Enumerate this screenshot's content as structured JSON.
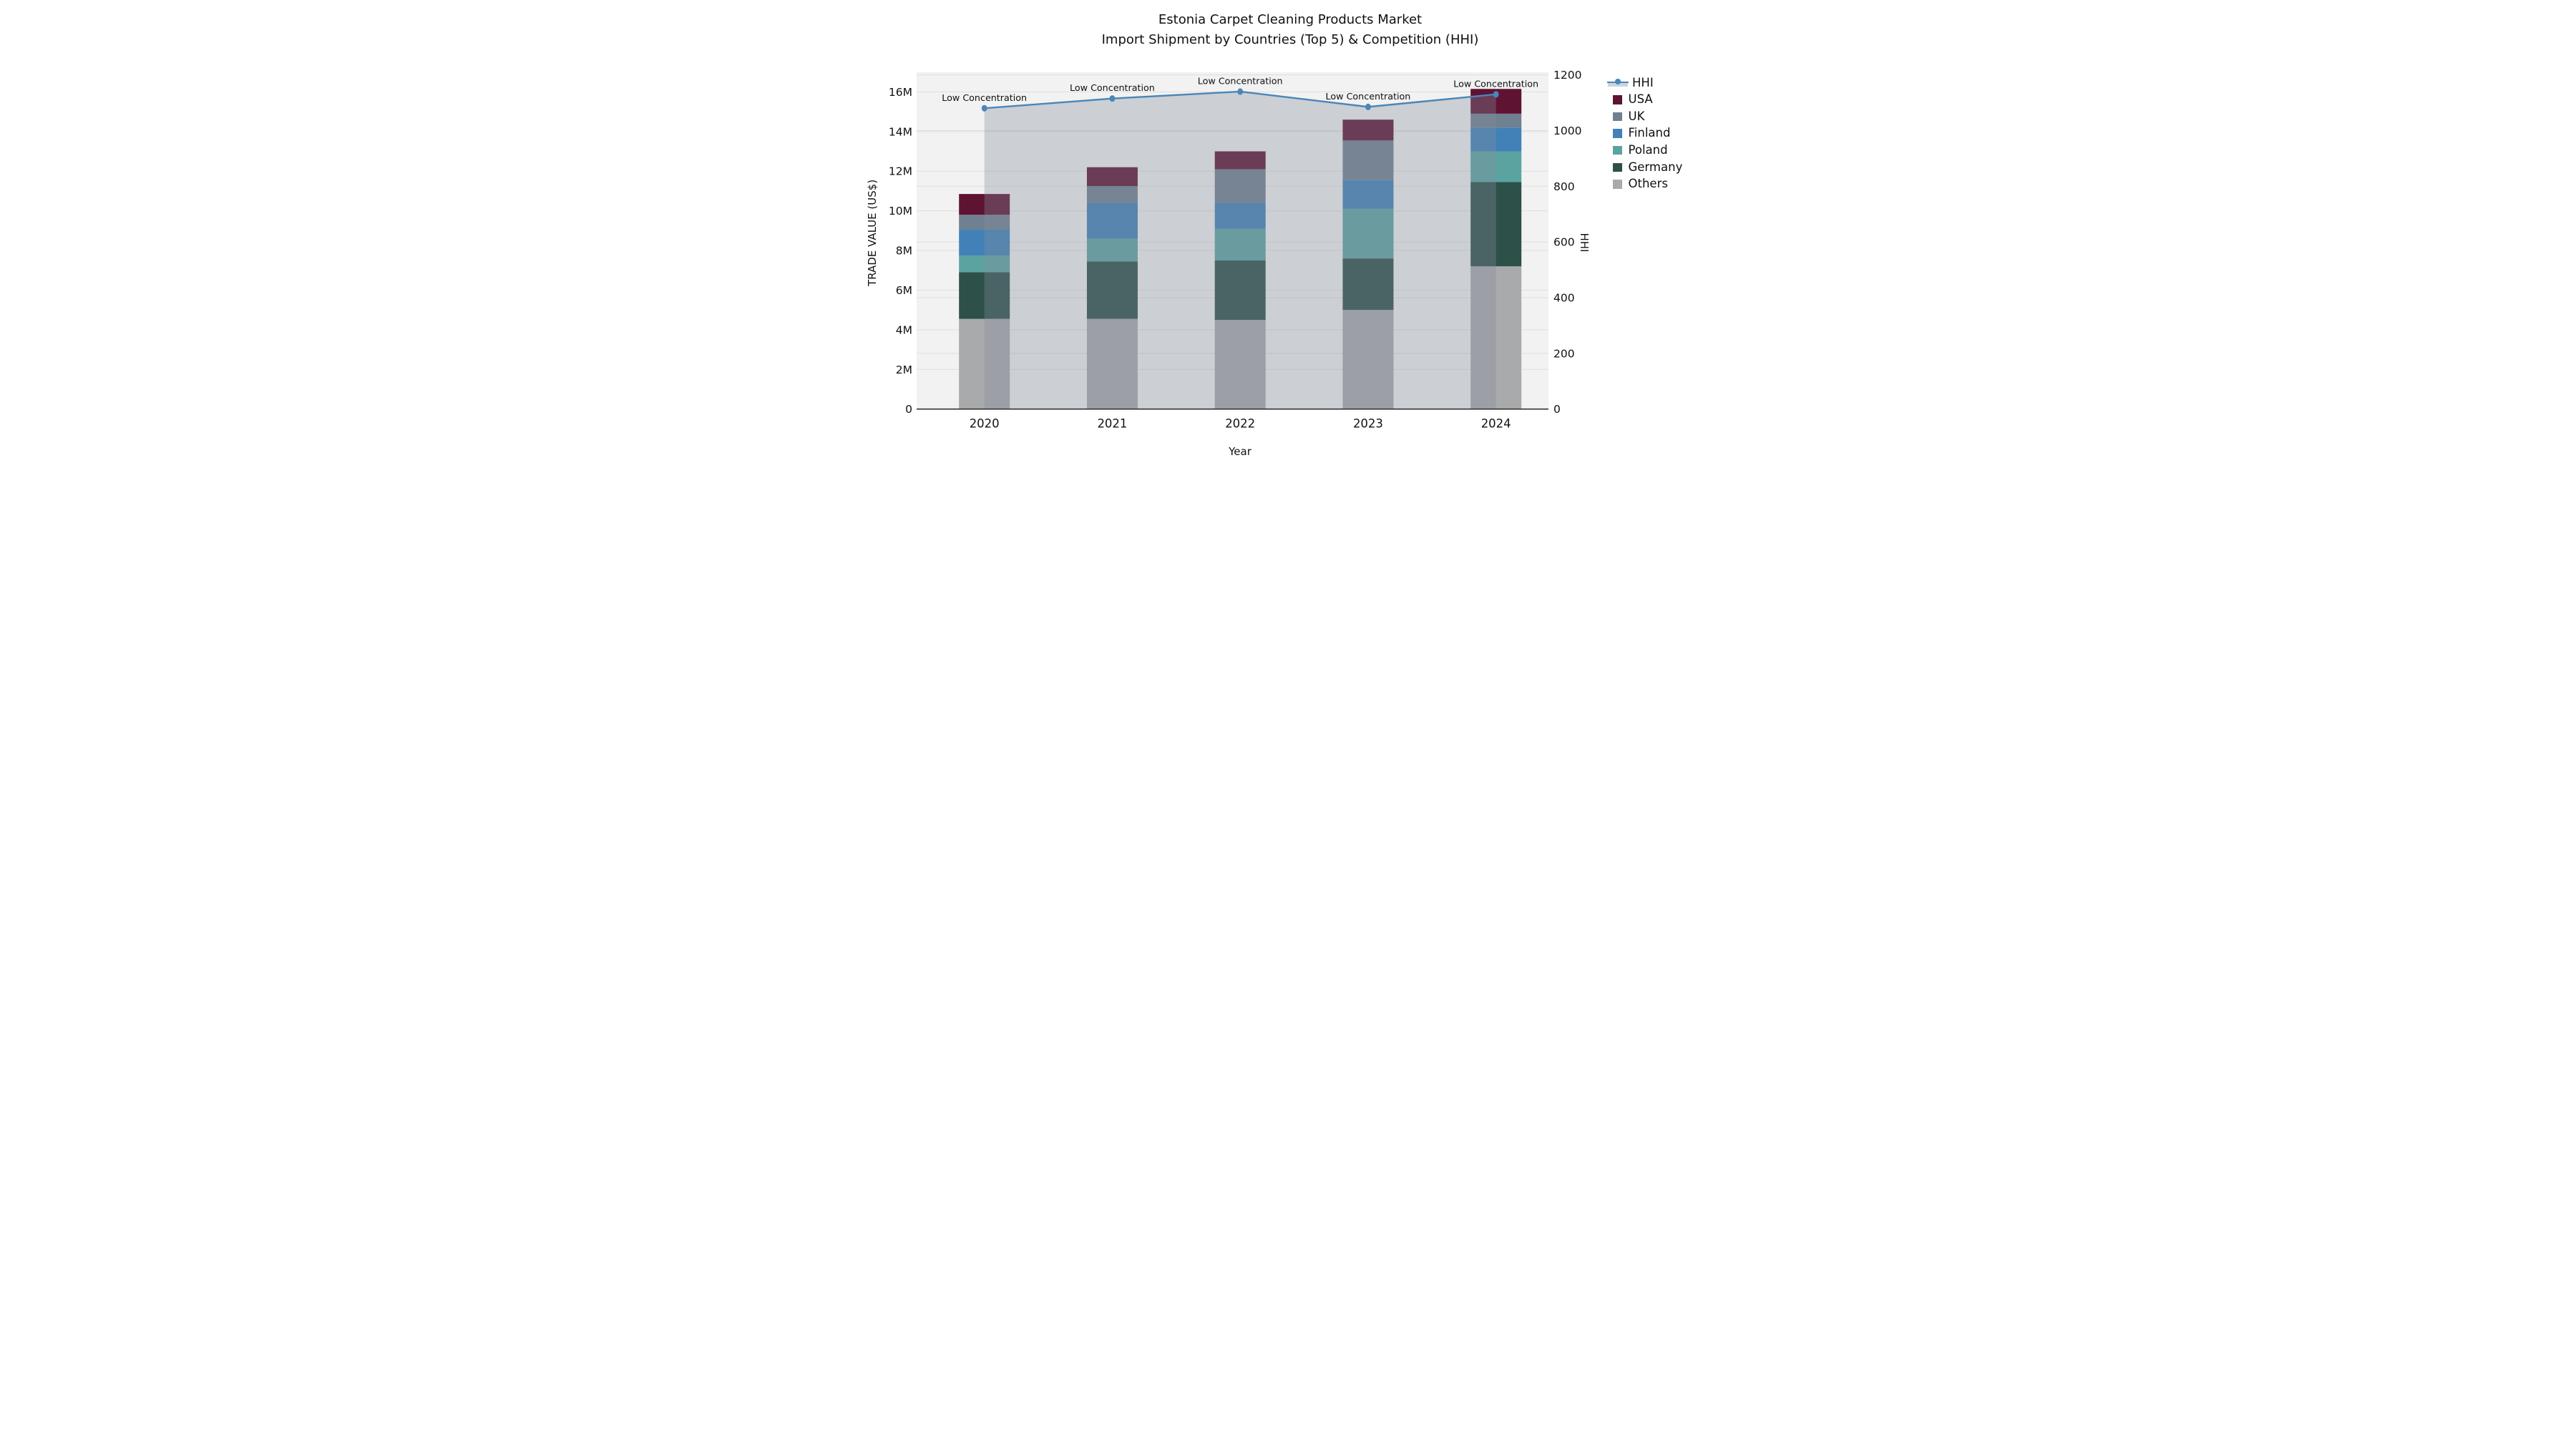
{
  "figure": {
    "title_line1": "Estonia Carpet Cleaning Products Market",
    "title_line2": "Import Shipment by Countries (Top 5) & Competition (HHI)"
  },
  "chart_data": {
    "type": "bar",
    "subtype": "stacked-bar-with-line-overlay",
    "title": "Estonia Carpet Cleaning Products Market — Import Shipment by Countries (Top 5) & Competition (HHI)",
    "categories": [
      "2020",
      "2021",
      "2022",
      "2023",
      "2024"
    ],
    "xlabel": "Year",
    "left_axis": {
      "label": "TRADE VALUE (US$)",
      "tick_labels": [
        "0",
        "2M",
        "4M",
        "6M",
        "8M",
        "10M",
        "12M",
        "14M",
        "16M"
      ],
      "tick_values_millions": [
        0,
        2,
        4,
        6,
        8,
        10,
        12,
        14,
        16
      ],
      "range_millions": [
        0,
        17.0
      ],
      "grid": true
    },
    "right_axis": {
      "label": "HHI",
      "tick_labels": [
        "0",
        "200",
        "400",
        "600",
        "800",
        "1000",
        "1200"
      ],
      "tick_values": [
        0,
        200,
        400,
        600,
        800,
        1000,
        1200
      ],
      "range": [
        0,
        1210
      ],
      "grid": true
    },
    "series": [
      {
        "name": "Others",
        "color": "#a9aaac",
        "values_millions": [
          4.55,
          4.55,
          4.5,
          5.0,
          7.2
        ]
      },
      {
        "name": "Germany",
        "color": "#2d5049",
        "values_millions": [
          2.35,
          2.9,
          3.0,
          2.6,
          4.25
        ]
      },
      {
        "name": "Poland",
        "color": "#5ba3a1",
        "values_millions": [
          0.85,
          1.15,
          1.6,
          2.5,
          1.55
        ]
      },
      {
        "name": "Finland",
        "color": "#4181b8",
        "values_millions": [
          1.3,
          1.8,
          1.3,
          1.45,
          1.2
        ]
      },
      {
        "name": "UK",
        "color": "#6f8090",
        "values_millions": [
          0.75,
          0.85,
          1.7,
          2.0,
          0.7
        ]
      },
      {
        "name": "USA",
        "color": "#5f1333",
        "values_millions": [
          1.05,
          0.95,
          0.9,
          1.05,
          1.25
        ]
      }
    ],
    "stack_totals_millions": [
      10.85,
      12.2,
      13.0,
      14.6,
      16.15
    ],
    "line_series": {
      "name": "HHI",
      "axis": "right",
      "color": "#4a86b8",
      "area_fill_color": "rgba(133, 141, 156, 0.34)",
      "values": [
        1080,
        1115,
        1140,
        1085,
        1130
      ]
    },
    "point_annotations": [
      "Low Concentration",
      "Low Concentration",
      "Low Concentration",
      "Low Concentration",
      "Low Concentration"
    ],
    "legend_order": [
      "HHI",
      "USA",
      "UK",
      "Finland",
      "Poland",
      "Germany",
      "Others"
    ],
    "legend_position": "right"
  },
  "colors": {
    "figure_bg": "#ffffff",
    "plot_bg": "#f2f2f2",
    "gridline": "#dedede",
    "axis_line": "#333333",
    "text": "#111111"
  }
}
